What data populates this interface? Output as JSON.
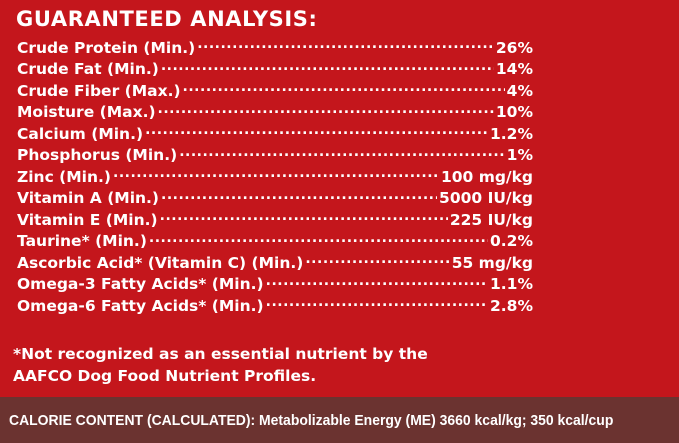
{
  "heading": "GUARANTEED ANALYSIS:",
  "rows": [
    {
      "label": "Crude Protein (Min.)",
      "value": "26%"
    },
    {
      "label": "Crude Fat (Min.)",
      "value": "14%"
    },
    {
      "label": "Crude Fiber (Max.)",
      "value": "4%"
    },
    {
      "label": "Moisture (Max.)",
      "value": "10%"
    },
    {
      "label": "Calcium (Min.)",
      "value": "1.2%"
    },
    {
      "label": "Phosphorus (Min.)",
      "value": "1%"
    },
    {
      "label": "Zinc (Min.)",
      "value": "100 mg/kg"
    },
    {
      "label": "Vitamin A (Min.)",
      "value": "5000 IU/kg"
    },
    {
      "label": "Vitamin E (Min.)",
      "value": "225 IU/kg"
    },
    {
      "label": "Taurine* (Min.)",
      "value": "0.2%"
    },
    {
      "label": "Ascorbic Acid* (Vitamin C) (Min.)",
      "value": "55 mg/kg"
    },
    {
      "label": "Omega-3 Fatty Acids* (Min.)",
      "value": "1.1%"
    },
    {
      "label": "Omega-6 Fatty Acids* (Min.)",
      "value": "2.8%"
    }
  ],
  "footnote": {
    "line1": "*Not recognized as an essential nutrient by the",
    "line2": "AAFCO Dog Food Nutrient Profiles."
  },
  "calorie": "CALORIE CONTENT (CALCULATED): Metabolizable Energy (ME) 3660 kcal/kg; 350 kcal/cup",
  "colors": {
    "background": "#c4161c",
    "calorie_bar": "#6b3330",
    "text": "#ffffff"
  }
}
